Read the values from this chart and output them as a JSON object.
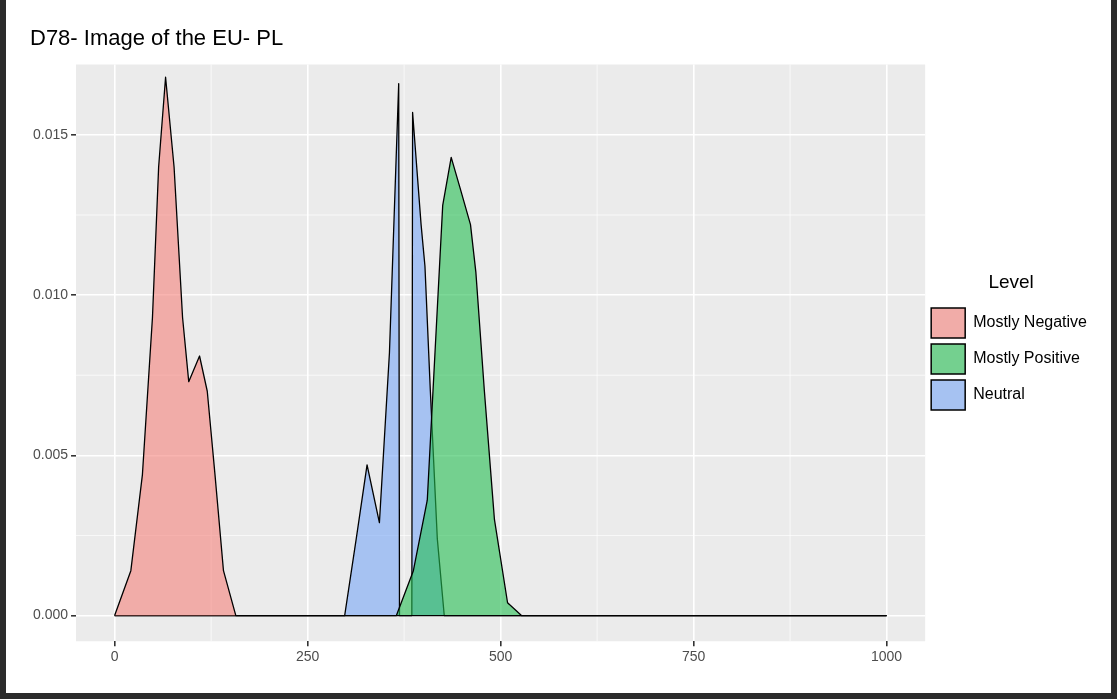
{
  "chart_data": {
    "type": "area",
    "title": "D78- Image of the EU- PL",
    "legend_title": "Level",
    "legend": "right",
    "grid": true,
    "xlim": [
      -50,
      1050
    ],
    "xticks": [
      0,
      250,
      500,
      750,
      1000
    ],
    "ylim": [
      -0.0008,
      0.0172
    ],
    "yticks": [
      {
        "value": 0,
        "label": "0.000"
      },
      0.005,
      {
        "value": 0.01,
        "label": "0.010"
      },
      0.015
    ],
    "series": [
      {
        "name": "Mostly Negative",
        "color": "#f1aca8",
        "x": [
          0,
          21,
          36,
          49,
          57,
          66,
          77,
          88,
          96,
          110,
          120,
          130,
          141,
          157,
          1000
        ],
        "values": [
          0,
          0.0014,
          0.0044,
          0.0093,
          0.014,
          0.0168,
          0.014,
          0.0093,
          0.0073,
          0.0081,
          0.007,
          0.0044,
          0.0014,
          0,
          0
        ]
      },
      {
        "name": "Mostly Positive",
        "color": "#74d08f",
        "x": [
          0,
          365,
          387,
          405,
          415,
          425,
          436,
          448,
          461,
          468,
          479,
          492,
          509,
          527,
          1000
        ],
        "values": [
          0,
          0,
          0.0014,
          0.0036,
          0.0082,
          0.0128,
          0.0143,
          0.0133,
          0.0122,
          0.0107,
          0.007,
          0.003,
          0.0004,
          0,
          0
        ]
      },
      {
        "name": "Neutral",
        "color": "#a6c2f2",
        "x": [
          0,
          298,
          313,
          327,
          343,
          356,
          368,
          369,
          385,
          386,
          397,
          402,
          409,
          418,
          427,
          1000
        ],
        "values": [
          0,
          0,
          0.0024,
          0.0047,
          0.0029,
          0.0082,
          0.0166,
          0,
          0,
          0.0157,
          0.0122,
          0.0109,
          0.007,
          0.0024,
          0,
          0
        ]
      }
    ]
  }
}
